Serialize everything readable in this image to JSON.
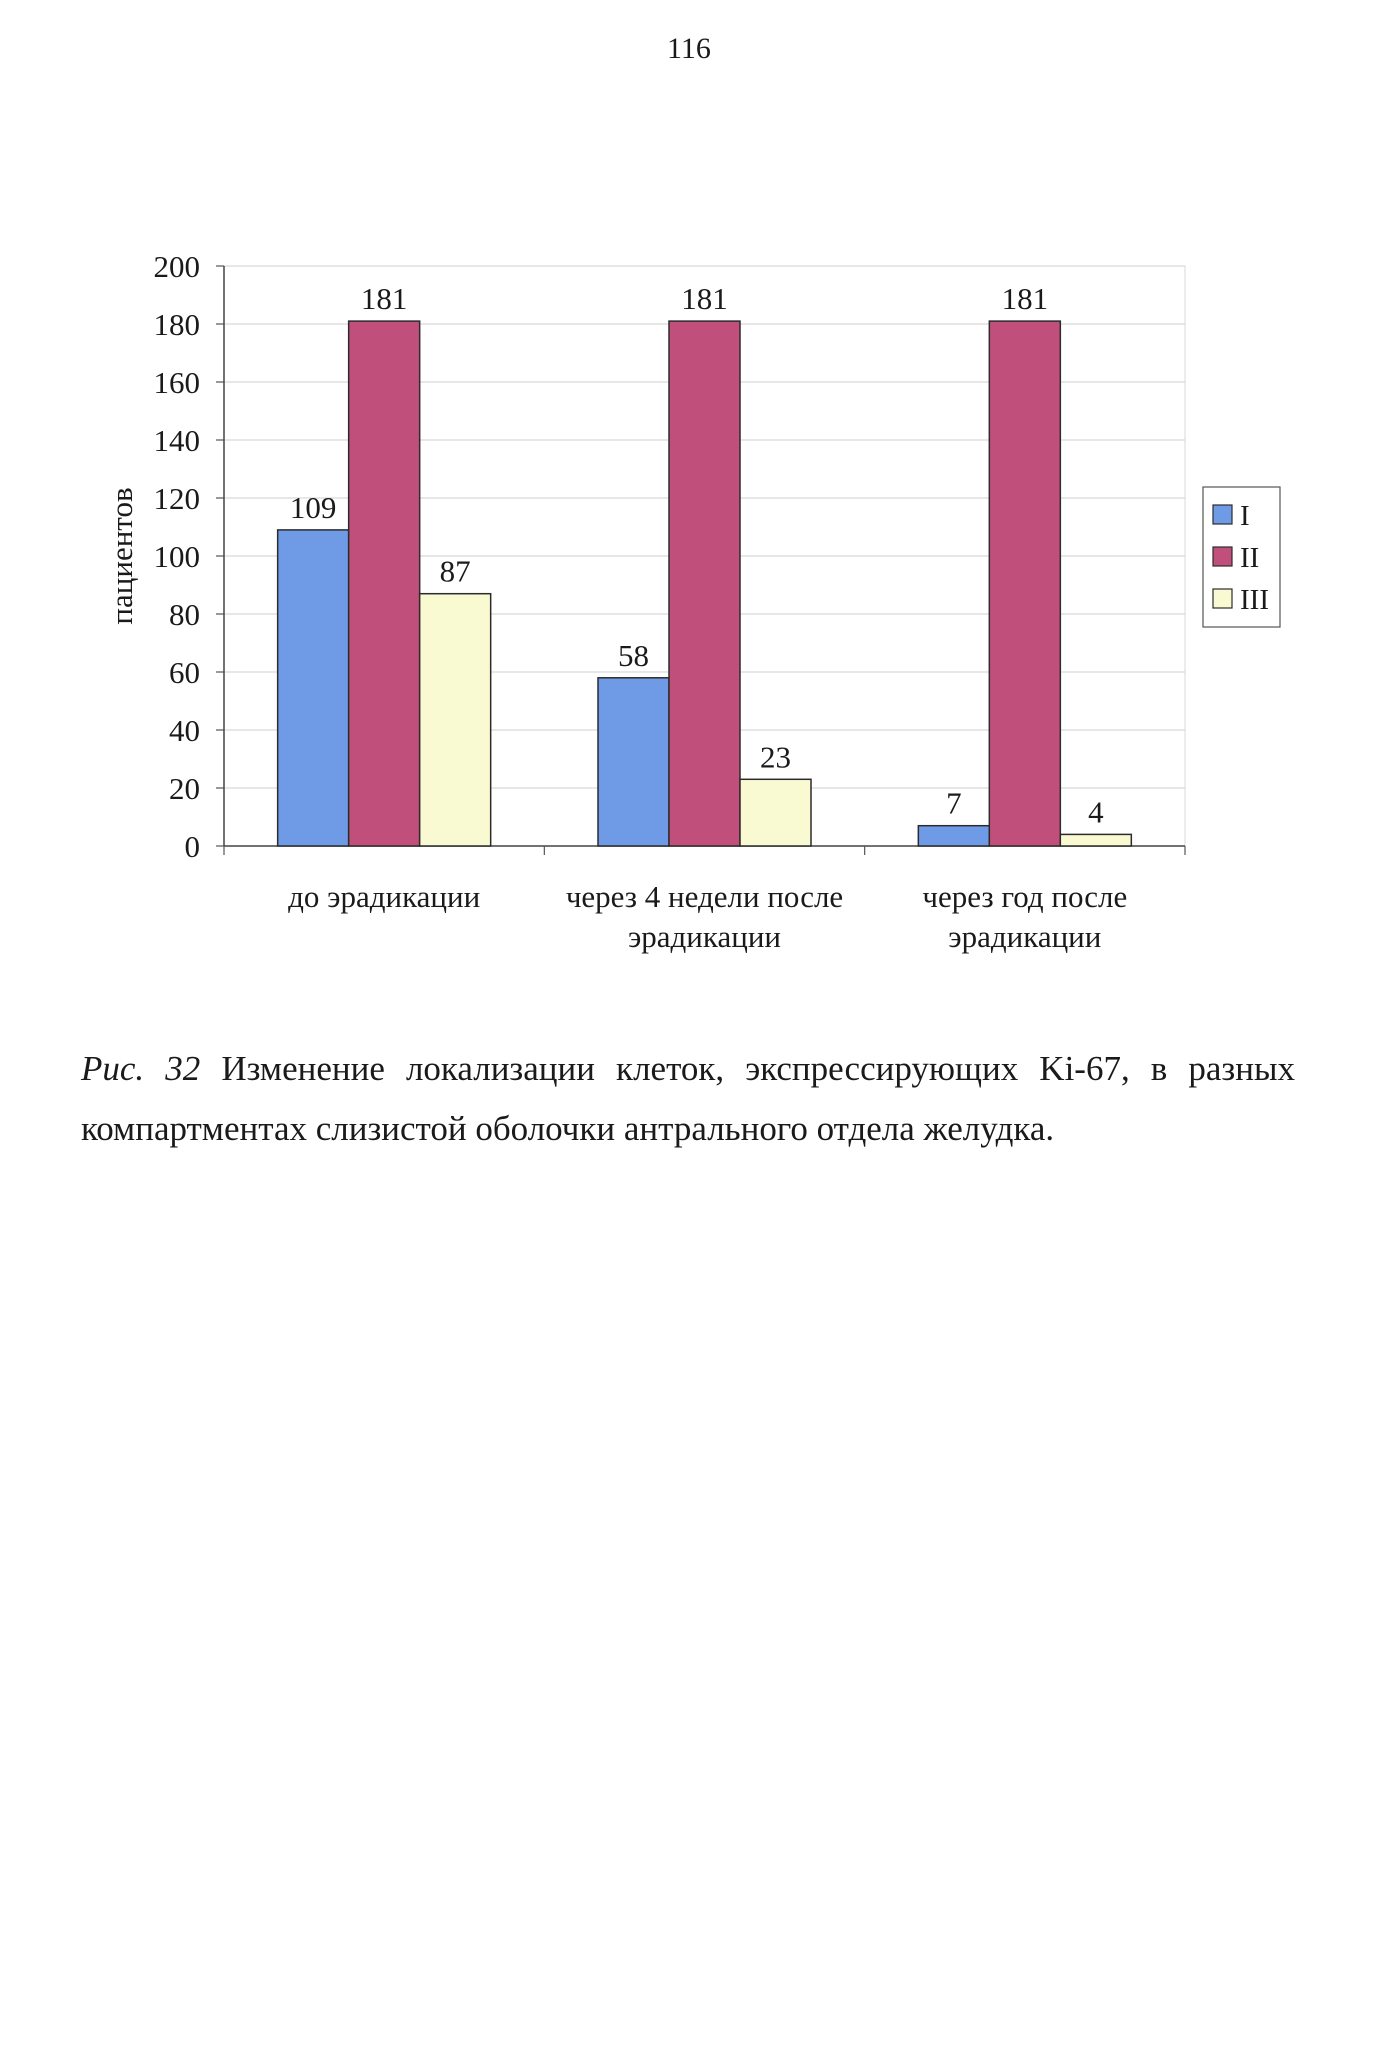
{
  "page": {
    "number": "116"
  },
  "chart_data": {
    "type": "bar",
    "title": "",
    "ylabel": "пациентов",
    "xlabel": "",
    "ylim": [
      0,
      200
    ],
    "yticks": [
      0,
      20,
      40,
      60,
      80,
      100,
      120,
      140,
      160,
      180,
      200
    ],
    "grid": true,
    "legend_position": "right",
    "categories": [
      [
        "до эрадикации"
      ],
      [
        "через 4 недели после",
        "эрадикации"
      ],
      [
        "через год после",
        "эрадикации"
      ]
    ],
    "series": [
      {
        "name": "I",
        "color": "#6f9be6",
        "values": [
          109,
          58,
          7
        ]
      },
      {
        "name": "II",
        "color": "#c14f7c",
        "values": [
          181,
          181,
          181
        ]
      },
      {
        "name": "III",
        "color": "#fafad2",
        "values": [
          87,
          23,
          4
        ]
      }
    ]
  },
  "caption": {
    "label": "Рис. 32",
    "text": " Изменение локализации клеток, экспрессирующих Ki-67, в разных компартментах слизистой оболочки антрального отдела желудка."
  }
}
